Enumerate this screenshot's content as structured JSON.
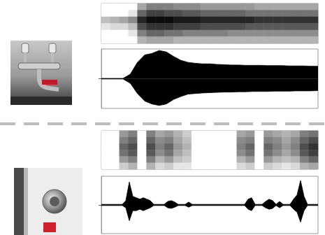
{
  "chart_data": [
    {
      "type": "heatmap",
      "color": "#000000",
      "tick_labels": false,
      "color_range": [
        0,
        1
      ],
      "cells": [
        [
          0,
          0,
          0,
          0,
          0.35,
          0.5,
          0.5,
          0.5,
          0.45,
          0.45,
          0.45,
          0.4,
          0.4,
          0.4,
          0.4,
          0.4,
          0.4,
          0.35,
          0.35,
          0.35,
          0.35,
          0.35,
          0.35,
          0.35
        ],
        [
          0,
          0,
          0,
          0.1,
          0.6,
          0.75,
          0.75,
          0.7,
          0.7,
          0.65,
          0.65,
          0.6,
          0.6,
          0.6,
          0.6,
          0.6,
          0.55,
          0.55,
          0.55,
          0.55,
          0.55,
          0.55,
          0.55,
          0.55
        ],
        [
          0.25,
          0.3,
          0.35,
          0.45,
          0.85,
          0.95,
          0.95,
          0.95,
          0.9,
          0.9,
          0.9,
          0.85,
          0.85,
          0.85,
          0.85,
          0.85,
          0.85,
          0.8,
          0.8,
          0.8,
          0.8,
          0.8,
          0.8,
          0.8
        ],
        [
          0.1,
          0.15,
          0.15,
          0.25,
          0.7,
          0.8,
          0.8,
          0.8,
          0.75,
          0.75,
          0.75,
          0.7,
          0.7,
          0.7,
          0.7,
          0.7,
          0.65,
          0.65,
          0.65,
          0.65,
          0.65,
          0.65,
          0.65,
          0.65
        ],
        [
          0,
          0,
          0,
          0.1,
          0.5,
          0.6,
          0.6,
          0.55,
          0.55,
          0.5,
          0.5,
          0.5,
          0.5,
          0.5,
          0.45,
          0.45,
          0.45,
          0.45,
          0.45,
          0.45,
          0.45,
          0.45,
          0.45,
          0.45
        ],
        [
          0,
          0,
          0,
          0,
          0.3,
          0.35,
          0.35,
          0.35,
          0.3,
          0.3,
          0.3,
          0.3,
          0.3,
          0.3,
          0.3,
          0.3,
          0.3,
          0.3,
          0.3,
          0.3,
          0.3,
          0.3,
          0.3,
          0.3
        ]
      ]
    },
    {
      "type": "area",
      "color": "#000000",
      "tick_labels": false,
      "xlim": [
        0,
        30
      ],
      "ylim": [
        -1,
        1
      ],
      "yticks": [
        0
      ],
      "x": [
        0,
        1,
        2,
        3,
        4,
        5,
        6,
        7,
        8,
        9,
        10,
        11,
        12,
        13,
        14,
        15,
        16,
        17,
        18,
        19,
        20,
        21,
        22,
        23,
        24,
        25,
        26,
        27,
        28,
        29,
        30
      ],
      "upper": [
        0.01,
        0.01,
        0.01,
        0.01,
        0.15,
        0.55,
        0.8,
        0.85,
        0.95,
        0.9,
        0.75,
        0.62,
        0.55,
        0.52,
        0.5,
        0.5,
        0.48,
        0.47,
        0.46,
        0.46,
        0.45,
        0.45,
        0.45,
        0.44,
        0.44,
        0.44,
        0.43,
        0.43,
        0.43,
        0.42,
        0.42
      ],
      "lower": [
        -0.01,
        -0.01,
        -0.01,
        -0.01,
        -0.15,
        -0.5,
        -0.75,
        -0.85,
        -0.9,
        -0.85,
        -0.7,
        -0.6,
        -0.52,
        -0.5,
        -0.48,
        -0.47,
        -0.46,
        -0.45,
        -0.45,
        -0.44,
        -0.44,
        -0.43,
        -0.43,
        -0.43,
        -0.42,
        -0.42,
        -0.42,
        -0.41,
        -0.41,
        -0.41,
        -0.4
      ]
    },
    {
      "type": "heatmap",
      "color": "#000000",
      "tick_labels": false,
      "color_range": [
        0,
        1
      ],
      "cells": [
        [
          0,
          0,
          0.4,
          0.5,
          0,
          0.5,
          0.35,
          0.4,
          0.3,
          0.2,
          0,
          0,
          0,
          0,
          0,
          0.35,
          0.4,
          0,
          0.4,
          0.35,
          0.3,
          0.35,
          0.5,
          0.55
        ],
        [
          0,
          0,
          0.5,
          0.6,
          0,
          0.6,
          0.45,
          0.5,
          0.35,
          0.25,
          0,
          0,
          0,
          0,
          0,
          0.45,
          0.5,
          0,
          0.5,
          0.45,
          0.35,
          0.45,
          0.6,
          0.7
        ],
        [
          0,
          0,
          0.6,
          0.7,
          0,
          0.7,
          0.5,
          0.6,
          0.4,
          0.3,
          0,
          0,
          0,
          0,
          0,
          0.5,
          0.6,
          0,
          0.6,
          0.5,
          0.4,
          0.5,
          0.7,
          0.8
        ],
        [
          0,
          0,
          0.55,
          0.65,
          0,
          0.65,
          0.45,
          0.55,
          0.35,
          0.25,
          0,
          0,
          0,
          0,
          0,
          0.45,
          0.55,
          0,
          0.55,
          0.45,
          0.35,
          0.45,
          0.65,
          0.75
        ],
        [
          0,
          0,
          0.4,
          0.5,
          0,
          0.5,
          0.3,
          0.4,
          0.25,
          0.2,
          0,
          0,
          0,
          0,
          0,
          0.3,
          0.4,
          0,
          0.4,
          0.3,
          0.25,
          0.3,
          0.5,
          0.6
        ],
        [
          0,
          0,
          0.2,
          0.3,
          0,
          0.3,
          0.15,
          0.2,
          0.1,
          0.1,
          0,
          0,
          0,
          0,
          0,
          0.15,
          0.2,
          0,
          0.2,
          0.15,
          0.1,
          0.15,
          0.3,
          0.35
        ]
      ]
    },
    {
      "type": "area",
      "color": "#000000",
      "tick_labels": false,
      "xlim": [
        0,
        62
      ],
      "ylim": [
        -1,
        1
      ],
      "yticks": [
        0
      ],
      "x": [
        0,
        1,
        2,
        3,
        4,
        5,
        6,
        7,
        8,
        9,
        10,
        11,
        12,
        13,
        14,
        15,
        16,
        17,
        18,
        19,
        20,
        21,
        22,
        23,
        24,
        25,
        26,
        27,
        28,
        29,
        30,
        31,
        32,
        33,
        34,
        35,
        36,
        37,
        38,
        39,
        40,
        41,
        42,
        43,
        44,
        45,
        46,
        47,
        48,
        49,
        50,
        51,
        52,
        53,
        54,
        55,
        56,
        57,
        58,
        59,
        60,
        61,
        62
      ],
      "upper": [
        0.02,
        0.02,
        0.02,
        0.02,
        0.02,
        0.02,
        0.02,
        0.15,
        0.8,
        0.3,
        0.25,
        0.2,
        0.25,
        0.2,
        0.15,
        0.02,
        0.02,
        0.02,
        0.02,
        0.12,
        0.15,
        0.1,
        0.02,
        0.02,
        0.02,
        0.1,
        0.02,
        0.02,
        0.02,
        0.02,
        0.02,
        0.02,
        0.02,
        0.02,
        0.02,
        0.02,
        0.02,
        0.02,
        0.02,
        0.02,
        0.02,
        0.02,
        0.2,
        0.25,
        0.02,
        0.02,
        0.02,
        0.12,
        0.2,
        0.15,
        0.02,
        0.12,
        0.02,
        0.02,
        0.02,
        0.2,
        0.35,
        0.85,
        0.3,
        0.02,
        0.02,
        0.02,
        0.02
      ],
      "lower": [
        -0.02,
        -0.02,
        -0.02,
        -0.02,
        -0.02,
        -0.02,
        -0.02,
        -0.1,
        -0.55,
        -0.2,
        -0.2,
        -0.15,
        -0.2,
        -0.15,
        -0.1,
        -0.02,
        -0.02,
        -0.02,
        -0.02,
        -0.1,
        -0.12,
        -0.08,
        -0.02,
        -0.02,
        -0.02,
        -0.08,
        -0.02,
        -0.02,
        -0.02,
        -0.02,
        -0.02,
        -0.02,
        -0.02,
        -0.02,
        -0.02,
        -0.02,
        -0.02,
        -0.02,
        -0.02,
        -0.02,
        -0.02,
        -0.02,
        -0.15,
        -0.2,
        -0.02,
        -0.02,
        -0.02,
        -0.1,
        -0.15,
        -0.12,
        -0.02,
        -0.1,
        -0.02,
        -0.02,
        -0.02,
        -0.15,
        -0.25,
        -0.6,
        -0.2,
        -0.02,
        -0.02,
        -0.02,
        -0.02
      ]
    }
  ]
}
